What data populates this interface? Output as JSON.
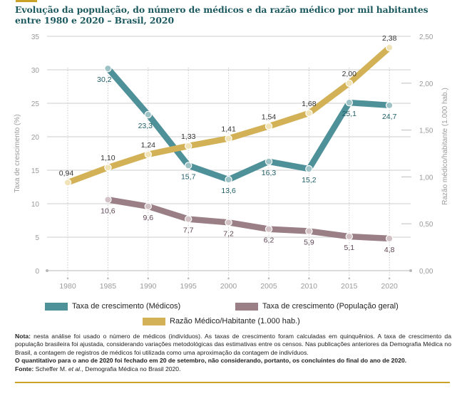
{
  "title": "Evolução da população, do número de médicos e da razão médico por mil habitantes entre 1980 e 2020 – Brasil, 2020",
  "colors": {
    "title": "#1d5a5f",
    "medicos": "#4f9199",
    "populacao": "#9a7f86",
    "razao": "#d3b257",
    "accent": "#c9a227",
    "medicos_label": "#1f5e66",
    "populacao_label": "#5e4453",
    "razao_label": "#333333",
    "grid": "#d0d0d0",
    "axis_text": "#9a9a9a"
  },
  "chart_data": {
    "type": "line",
    "title": "Evolução da população, do número de médicos e da razão médico por mil habitantes entre 1980 e 2020 – Brasil, 2020",
    "x": [
      "1980",
      "1985",
      "1990",
      "1995",
      "2000",
      "2005",
      "2010",
      "2015",
      "2020"
    ],
    "xlabel": "",
    "ylabel": "Taxa de crescimento (%)",
    "ylabel_right": "Razão médico/habitante (1.000 hab.)",
    "ylim": [
      0,
      35
    ],
    "ylim_right": [
      0,
      2.5
    ],
    "yticks": [
      "0",
      "5",
      "10",
      "15",
      "20",
      "25",
      "30",
      "35"
    ],
    "yticks_right": [
      "0,00",
      "0,50",
      "1,00",
      "1,50",
      "2,00",
      "2,50"
    ],
    "grid": true,
    "legend_position": "bottom",
    "series": [
      {
        "name": "Taxa de crescimento (Médicos)",
        "axis": "left",
        "x": [
          "1985",
          "1990",
          "1995",
          "2000",
          "2005",
          "2010",
          "2015",
          "2020"
        ],
        "values": [
          30.2,
          23.3,
          15.7,
          13.6,
          16.3,
          15.2,
          25.1,
          24.7
        ],
        "labels": [
          "30,2",
          "23,3",
          "15,7",
          "13,6",
          "16,3",
          "15,2",
          "25,1",
          "24,7"
        ]
      },
      {
        "name": "Taxa de crescimento (População geral)",
        "axis": "left",
        "x": [
          "1985",
          "1990",
          "1995",
          "2000",
          "2005",
          "2010",
          "2015",
          "2020"
        ],
        "values": [
          10.6,
          9.6,
          7.7,
          7.2,
          6.2,
          5.9,
          5.1,
          4.8
        ],
        "labels": [
          "10,6",
          "9,6",
          "7,7",
          "7,2",
          "6,2",
          "5,9",
          "5,1",
          "4,8"
        ]
      },
      {
        "name": "Razão Médico/Habitante (1.000 hab.)",
        "axis": "right",
        "x": [
          "1980",
          "1985",
          "1990",
          "1995",
          "2000",
          "2005",
          "2010",
          "2015",
          "2020"
        ],
        "values": [
          0.94,
          1.1,
          1.24,
          1.33,
          1.41,
          1.54,
          1.68,
          2.0,
          2.38
        ],
        "labels": [
          "0,94",
          "1,10",
          "1,24",
          "1,33",
          "1,41",
          "1,54",
          "1,68",
          "2,00",
          "2,38"
        ]
      }
    ]
  },
  "legend": {
    "medicos": "Taxa de crescimento (Médicos)",
    "populacao": "Taxa de crescimento (População geral)",
    "razao": "Razão Médico/Habitante (1.000 hab.)"
  },
  "notes": {
    "nota_label": "Nota:",
    "nota_text": " nesta análise foi usado o número de médicos (indivíduos). As taxas de crescimento foram calculadas em quinquênios. A taxa de crescimento da população brasileira foi ajustada, considerando variações metodológicas das estimativas entre os censos. Nas publicações anteriores da Demografia Médica no Brasil, a contagem de registros de médicos foi utilizada como uma aproximação da contagem de indivíduos.",
    "bold_line": "O quantitativo para o ano de 2020 foi fechado em 20 de setembro, não considerando, portanto, os concluintes do final do ano de 2020.",
    "fonte_label": "Fonte:",
    "fonte_author": " Scheffer M. ",
    "fonte_etal": "et al.",
    "fonte_rest": ", Demografia Médica no Brasil 2020."
  }
}
